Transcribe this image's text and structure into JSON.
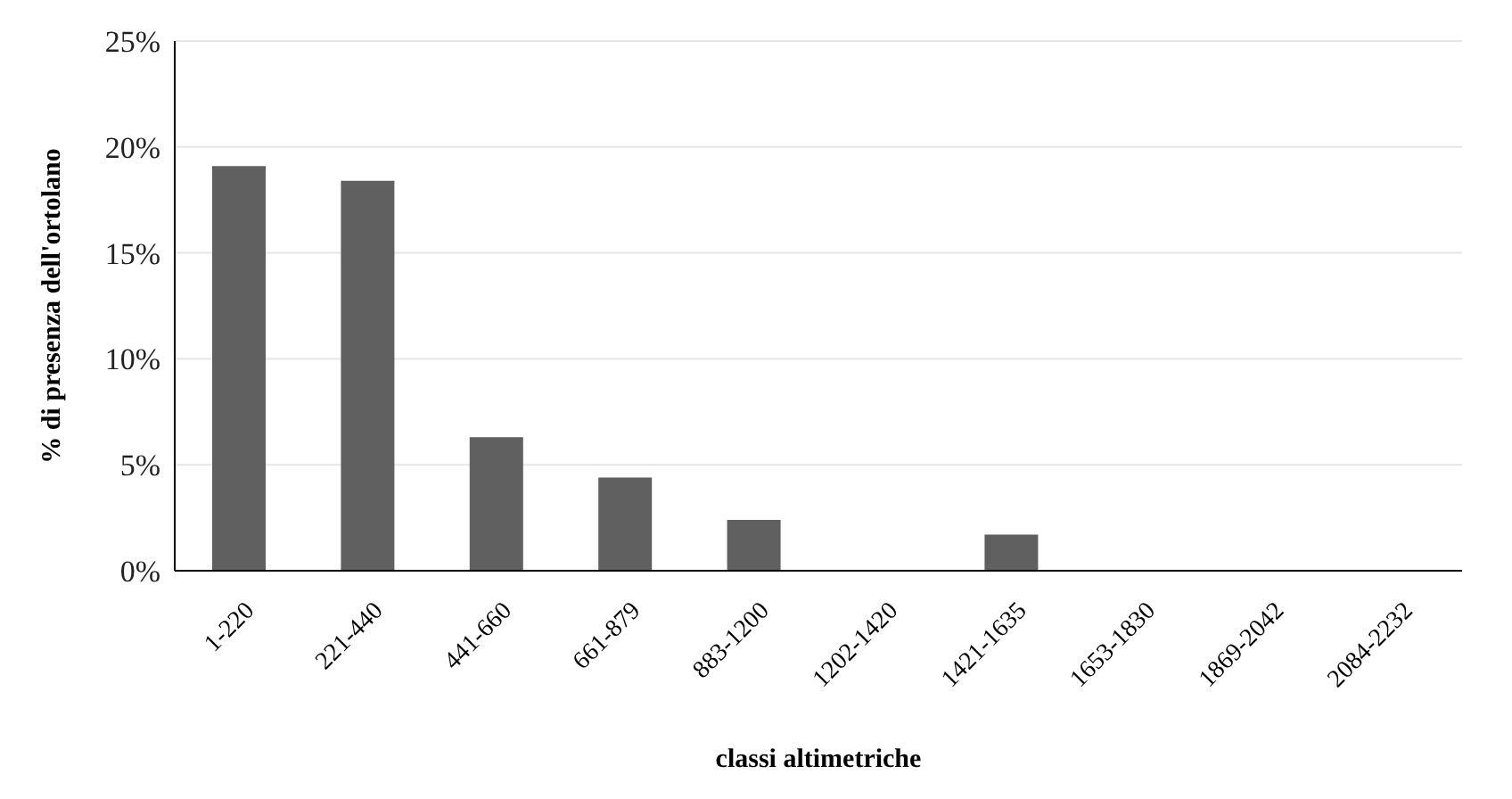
{
  "chart_data": {
    "type": "bar",
    "xlabel": "classi altimetriche",
    "ylabel": "% di presenza dell'ortolano",
    "categories": [
      "1-220",
      "221-440",
      "441-660",
      "661-879",
      "883-1200",
      "1202-1420",
      "1421-1635",
      "1653-1830",
      "1869-2042",
      "2084-2232"
    ],
    "values": [
      19.1,
      18.4,
      6.3,
      4.4,
      2.4,
      0,
      1.7,
      0,
      0,
      0
    ],
    "color": "#606060",
    "ylim": [
      0,
      25
    ],
    "yticks": [
      {
        "value": 0,
        "label": "0%"
      },
      {
        "value": 5,
        "label": "5%"
      },
      {
        "value": 10,
        "label": "10%"
      },
      {
        "value": 15,
        "label": "15%"
      },
      {
        "value": 20,
        "label": "20%"
      },
      {
        "value": 25,
        "label": "25%"
      }
    ],
    "grid": "y"
  }
}
